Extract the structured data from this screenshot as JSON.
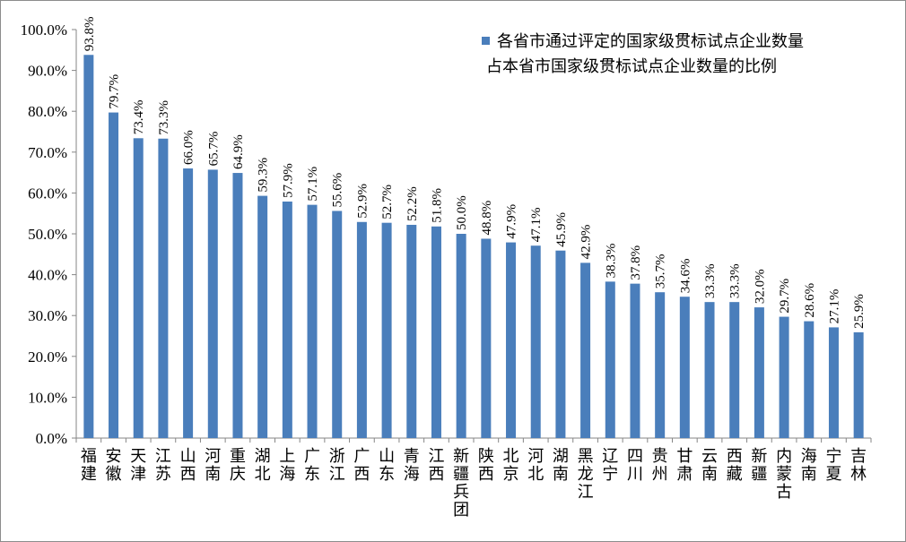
{
  "chart_data": {
    "type": "bar",
    "categories": [
      "福建",
      "安徽",
      "天津",
      "江苏",
      "山西",
      "河南",
      "重庆",
      "湖北",
      "上海",
      "广东",
      "浙江",
      "广西",
      "山东",
      "青海",
      "江西",
      "新疆兵团",
      "陕西",
      "北京",
      "河北",
      "湖南",
      "黑龙江",
      "辽宁",
      "四川",
      "贵州",
      "甘肃",
      "云南",
      "西藏",
      "新疆",
      "内蒙古",
      "海南",
      "宁夏",
      "吉林"
    ],
    "series": [
      {
        "name_lines": [
          "各省市通过评定的国家级贯标试点企业数量",
          "占本省市国家级贯标试点企业数量的比例"
        ],
        "values": [
          93.8,
          79.7,
          73.4,
          73.3,
          66.0,
          65.7,
          64.9,
          59.3,
          57.9,
          57.1,
          55.6,
          52.9,
          52.7,
          52.2,
          51.8,
          50.0,
          48.8,
          47.9,
          47.1,
          45.9,
          42.9,
          38.3,
          37.8,
          35.7,
          34.6,
          33.3,
          33.3,
          32.0,
          29.7,
          28.6,
          27.1,
          25.9
        ],
        "data_labels": [
          "93.8%",
          "79.7%",
          "73.4%",
          "73.3%",
          "66.0%",
          "65.7%",
          "64.9%",
          "59.3%",
          "57.9%",
          "57.1%",
          "55.6%",
          "52.9%",
          "52.7%",
          "52.2%",
          "51.8%",
          "50.0%",
          "48.8%",
          "47.9%",
          "47.1%",
          "45.9%",
          "42.9%",
          "38.3%",
          "37.8%",
          "35.7%",
          "34.6%",
          "33.3%",
          "33.3%",
          "32.0%",
          "29.7%",
          "28.6%",
          "27.1%",
          "25.9%"
        ],
        "color": "#4a7ebb"
      }
    ],
    "yticks": [
      "0.0%",
      "10.0%",
      "20.0%",
      "30.0%",
      "40.0%",
      "50.0%",
      "60.0%",
      "70.0%",
      "80.0%",
      "90.0%",
      "100.0%"
    ],
    "ylim": [
      0,
      100
    ],
    "grid": false,
    "legend_position": "top-right"
  }
}
